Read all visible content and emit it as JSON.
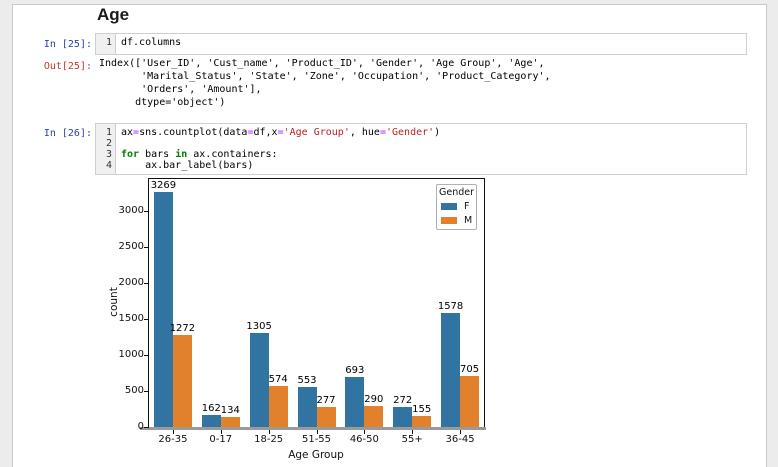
{
  "heading": "Age",
  "colors": {
    "in_prompt": "#303F9F",
    "out_prompt": "#C0392B",
    "operator": "#AA22FF",
    "string": "#BA2121",
    "keyword": "#008000",
    "bar_female": "#3274A1",
    "bar_male": "#E1812C"
  },
  "cells": {
    "in25": {
      "prompt": "In [25]:",
      "code_lines": [
        [
          [
            "p",
            "df.columns"
          ]
        ]
      ]
    },
    "out25": {
      "prompt": "Out[25]:",
      "text_lines": [
        "Index(['User_ID', 'Cust_name', 'Product_ID', 'Gender', 'Age Group', 'Age',",
        "       'Marital_Status', 'State', 'Zone', 'Occupation', 'Product_Category',",
        "       'Orders', 'Amount'],",
        "      dtype='object')"
      ]
    },
    "in26": {
      "prompt": "In [26]:",
      "code_lines": [
        [
          [
            "p",
            "ax"
          ],
          [
            "o",
            "="
          ],
          [
            "p",
            "sns.countplot(data"
          ],
          [
            "o",
            "="
          ],
          [
            "p",
            "df,x"
          ],
          [
            "o",
            "="
          ],
          [
            "s",
            "'Age Group'"
          ],
          [
            "p",
            ", hue"
          ],
          [
            "o",
            "="
          ],
          [
            "s",
            "'Gender'"
          ],
          [
            "p",
            ")"
          ]
        ],
        [],
        [
          [
            "k",
            "for"
          ],
          [
            "p",
            " bars "
          ],
          [
            "k",
            "in"
          ],
          [
            "p",
            " ax.containers:"
          ]
        ],
        [
          [
            "p",
            "    ax.bar_label(bars)"
          ]
        ]
      ]
    }
  },
  "chart_data": {
    "type": "bar",
    "title": "",
    "xlabel": "Age Group",
    "ylabel": "count",
    "categories": [
      "26-35",
      "0-17",
      "18-25",
      "51-55",
      "46-50",
      "55+",
      "36-45"
    ],
    "series": [
      {
        "name": "F",
        "color": "#3274A1",
        "values": [
          3269,
          162,
          1305,
          553,
          693,
          272,
          1578
        ]
      },
      {
        "name": "M",
        "color": "#E1812C",
        "values": [
          1272,
          134,
          574,
          277,
          290,
          155,
          705
        ]
      }
    ],
    "bar_labels": true,
    "legend_title": "Gender",
    "legend_position": "upper right",
    "yticks": [
      0,
      500,
      1000,
      1500,
      2000,
      2500,
      3000
    ],
    "ylim": [
      0,
      3460
    ],
    "grid": false
  }
}
